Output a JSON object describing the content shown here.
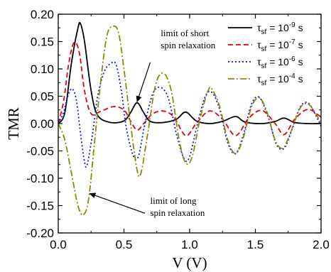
{
  "chart_data": {
    "type": "line",
    "xlabel": "V (V)",
    "ylabel": "TMR",
    "xlim": [
      0.0,
      2.0
    ],
    "ylim": [
      -0.2,
      0.2
    ],
    "xticks": [
      "0.0",
      "0.5",
      "1.0",
      "1.5",
      "2.0"
    ],
    "yticks": [
      "-0.20",
      "-0.15",
      "-0.10",
      "-0.05",
      "0.00",
      "0.05",
      "0.10",
      "0.15",
      "0.20"
    ],
    "grid": false,
    "legend_position": "top-right",
    "series": [
      {
        "name": "τsf = 10⁻⁹ s",
        "legend_base": "τ",
        "legend_sub": "sf",
        "legend_mid": " = 10",
        "legend_sup": "-9",
        "legend_end": " s",
        "color": "#000000",
        "dash": "solid",
        "points": [
          [
            0.0,
            0.0
          ],
          [
            0.05,
            0.02
          ],
          [
            0.1,
            0.11
          ],
          [
            0.15,
            0.175
          ],
          [
            0.17,
            0.182
          ],
          [
            0.2,
            0.15
          ],
          [
            0.25,
            0.06
          ],
          [
            0.3,
            0.015
          ],
          [
            0.4,
            0.002
          ],
          [
            0.5,
            0.005
          ],
          [
            0.55,
            0.02
          ],
          [
            0.6,
            0.038
          ],
          [
            0.65,
            0.02
          ],
          [
            0.7,
            0.004
          ],
          [
            0.8,
            0.002
          ],
          [
            0.9,
            0.008
          ],
          [
            0.97,
            0.021
          ],
          [
            1.05,
            0.005
          ],
          [
            1.15,
            0.0
          ],
          [
            1.25,
            0.004
          ],
          [
            1.35,
            0.013
          ],
          [
            1.42,
            0.003
          ],
          [
            1.55,
            0.0
          ],
          [
            1.65,
            0.004
          ],
          [
            1.72,
            0.01
          ],
          [
            1.8,
            0.002
          ],
          [
            1.9,
            0.0
          ],
          [
            2.0,
            0.0
          ]
        ]
      },
      {
        "name": "τsf = 10⁻⁷ s",
        "legend_base": "τ",
        "legend_sub": "sf",
        "legend_mid": " = 10",
        "legend_sup": "-7",
        "legend_end": " s",
        "color": "#e8000b",
        "dash": "dashed",
        "points": [
          [
            0.0,
            0.0
          ],
          [
            0.04,
            0.04
          ],
          [
            0.08,
            0.11
          ],
          [
            0.12,
            0.148
          ],
          [
            0.16,
            0.13
          ],
          [
            0.2,
            0.06
          ],
          [
            0.25,
            0.018
          ],
          [
            0.32,
            0.022
          ],
          [
            0.42,
            0.031
          ],
          [
            0.5,
            0.025
          ],
          [
            0.55,
            0.005
          ],
          [
            0.6,
            -0.012
          ],
          [
            0.65,
            0.0
          ],
          [
            0.72,
            0.018
          ],
          [
            0.8,
            0.023
          ],
          [
            0.88,
            0.012
          ],
          [
            0.97,
            -0.022
          ],
          [
            1.05,
            0.0
          ],
          [
            1.15,
            0.023
          ],
          [
            1.25,
            0.008
          ],
          [
            1.35,
            -0.022
          ],
          [
            1.45,
            0.01
          ],
          [
            1.55,
            0.024
          ],
          [
            1.65,
            0.0
          ],
          [
            1.72,
            -0.02
          ],
          [
            1.8,
            0.008
          ],
          [
            1.9,
            0.026
          ],
          [
            2.0,
            0.012
          ]
        ]
      },
      {
        "name": "τsf = 10⁻⁶ s",
        "legend_base": "τ",
        "legend_sub": "sf",
        "legend_mid": " = 10",
        "legend_sup": "-6",
        "legend_end": " s",
        "color": "#0a14e6",
        "dash": "dotted",
        "points": [
          [
            0.0,
            0.0
          ],
          [
            0.04,
            0.02
          ],
          [
            0.08,
            0.055
          ],
          [
            0.11,
            0.063
          ],
          [
            0.14,
            0.04
          ],
          [
            0.17,
            -0.02
          ],
          [
            0.2,
            -0.07
          ],
          [
            0.22,
            -0.075
          ],
          [
            0.26,
            -0.02
          ],
          [
            0.3,
            0.05
          ],
          [
            0.35,
            0.095
          ],
          [
            0.4,
            0.11
          ],
          [
            0.44,
            0.108
          ],
          [
            0.48,
            0.06
          ],
          [
            0.52,
            -0.01
          ],
          [
            0.57,
            -0.058
          ],
          [
            0.61,
            -0.06
          ],
          [
            0.66,
            0.0
          ],
          [
            0.72,
            0.055
          ],
          [
            0.78,
            0.066
          ],
          [
            0.84,
            0.045
          ],
          [
            0.9,
            -0.02
          ],
          [
            0.96,
            -0.065
          ],
          [
            1.0,
            -0.06
          ],
          [
            1.06,
            0.0
          ],
          [
            1.12,
            0.05
          ],
          [
            1.17,
            0.057
          ],
          [
            1.23,
            0.025
          ],
          [
            1.29,
            -0.035
          ],
          [
            1.35,
            -0.055
          ],
          [
            1.41,
            -0.02
          ],
          [
            1.47,
            0.035
          ],
          [
            1.53,
            0.048
          ],
          [
            1.6,
            0.01
          ],
          [
            1.66,
            -0.038
          ],
          [
            1.72,
            -0.045
          ],
          [
            1.78,
            -0.01
          ],
          [
            1.84,
            0.03
          ],
          [
            1.9,
            0.038
          ],
          [
            1.96,
            0.015
          ],
          [
            2.0,
            -0.005
          ]
        ]
      },
      {
        "name": "τsf = 10⁻⁴ s",
        "legend_base": "τ",
        "legend_sub": "sf",
        "legend_mid": " = 10",
        "legend_sup": "-4",
        "legend_end": " s",
        "color": "#8b8b00",
        "dash": "dashdot",
        "points": [
          [
            0.0,
            0.0
          ],
          [
            0.05,
            -0.03
          ],
          [
            0.1,
            -0.09
          ],
          [
            0.15,
            -0.15
          ],
          [
            0.19,
            -0.167
          ],
          [
            0.23,
            -0.14
          ],
          [
            0.27,
            -0.05
          ],
          [
            0.32,
            0.07
          ],
          [
            0.37,
            0.16
          ],
          [
            0.42,
            0.178
          ],
          [
            0.46,
            0.165
          ],
          [
            0.5,
            0.1
          ],
          [
            0.55,
            0.0
          ],
          [
            0.6,
            -0.085
          ],
          [
            0.63,
            -0.09
          ],
          [
            0.68,
            -0.02
          ],
          [
            0.74,
            0.07
          ],
          [
            0.8,
            0.092
          ],
          [
            0.86,
            0.06
          ],
          [
            0.92,
            -0.03
          ],
          [
            0.97,
            -0.072
          ],
          [
            1.02,
            -0.06
          ],
          [
            1.08,
            0.01
          ],
          [
            1.14,
            0.06
          ],
          [
            1.17,
            0.063
          ],
          [
            1.23,
            0.03
          ],
          [
            1.29,
            -0.03
          ],
          [
            1.35,
            -0.055
          ],
          [
            1.41,
            -0.025
          ],
          [
            1.47,
            0.03
          ],
          [
            1.53,
            0.047
          ],
          [
            1.59,
            0.02
          ],
          [
            1.65,
            -0.03
          ],
          [
            1.71,
            -0.045
          ],
          [
            1.77,
            -0.015
          ],
          [
            1.84,
            0.028
          ],
          [
            1.9,
            0.036
          ],
          [
            1.96,
            0.018
          ],
          [
            2.0,
            0.0
          ]
        ]
      }
    ],
    "annotations": [
      {
        "lines": [
          "limit of short",
          "spin relaxation"
        ],
        "x": 0.78,
        "y": 0.16,
        "arrow_to": [
          0.6,
          0.04
        ],
        "arrow_from": [
          0.7,
          0.112
        ]
      },
      {
        "lines": [
          "limit of long",
          "spin relaxation"
        ],
        "x": 0.7,
        "y": -0.147,
        "arrow_to": [
          0.24,
          -0.128
        ],
        "arrow_from": [
          0.66,
          -0.164
        ]
      }
    ]
  }
}
